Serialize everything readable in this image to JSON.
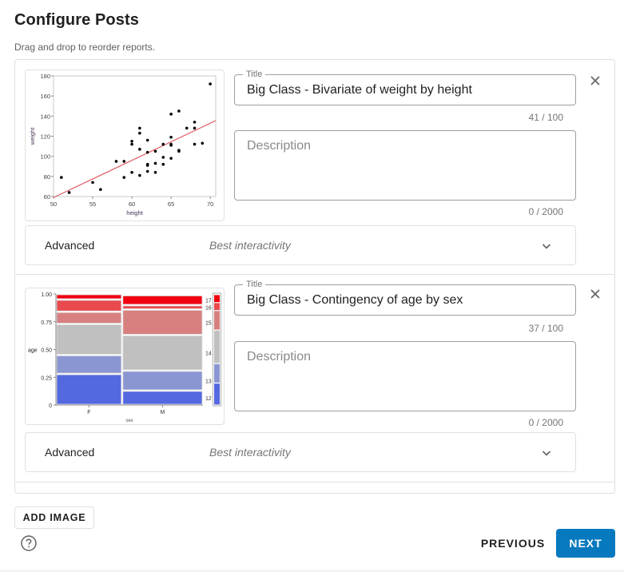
{
  "header": {
    "title": "Configure Posts",
    "subtitle": "Drag and drop to reorder reports."
  },
  "posts": [
    {
      "thumbnail_type": "scatter",
      "title_label": "Title",
      "title_value": "Big Class - Bivariate of weight by height",
      "title_counter": "41 / 100",
      "description_placeholder": "Description",
      "description_value": "",
      "description_counter": "0 / 2000",
      "advanced_label": "Advanced",
      "advanced_value": "Best interactivity",
      "close_icon": "close-icon",
      "expand_icon": "chevron-down-icon"
    },
    {
      "thumbnail_type": "mosaic",
      "title_label": "Title",
      "title_value": "Big Class - Contingency of age by sex",
      "title_counter": "37 / 100",
      "description_placeholder": "Description",
      "description_value": "",
      "description_counter": "0 / 2000",
      "advanced_label": "Advanced",
      "advanced_value": "Best interactivity",
      "close_icon": "close-icon",
      "expand_icon": "chevron-down-icon"
    }
  ],
  "footer": {
    "add_image_label": "ADD IMAGE",
    "help_icon": "help-circle-icon",
    "previous_label": "PREVIOUS",
    "next_label": "NEXT"
  },
  "colors": {
    "primary": "#0779bf",
    "regression_line": "#e05a64",
    "mosaic_17": "#f2000f",
    "mosaic_16": "#e84a4d",
    "mosaic_15": "#d88080",
    "mosaic_14": "#c0c0c0",
    "mosaic_13": "#8a96d2",
    "mosaic_12": "#5468e0"
  },
  "chart_data": [
    {
      "type": "scatter",
      "title": "Bivariate of weight by height",
      "xlabel": "height",
      "ylabel": "weight",
      "xlim": [
        50,
        70.7
      ],
      "ylim": [
        60,
        180
      ],
      "xticks": [
        50,
        55,
        60,
        65,
        70
      ],
      "yticks": [
        60,
        80,
        100,
        120,
        140,
        160,
        180
      ],
      "points": [
        [
          51,
          79
        ],
        [
          52,
          64
        ],
        [
          55,
          74
        ],
        [
          56,
          67
        ],
        [
          58,
          95
        ],
        [
          59,
          95
        ],
        [
          59,
          79
        ],
        [
          60,
          115
        ],
        [
          60,
          112
        ],
        [
          60,
          84
        ],
        [
          61,
          128
        ],
        [
          61,
          123
        ],
        [
          61,
          107
        ],
        [
          61,
          81
        ],
        [
          62,
          116
        ],
        [
          62,
          104
        ],
        [
          62,
          92
        ],
        [
          62,
          91
        ],
        [
          62,
          85
        ],
        [
          63,
          105
        ],
        [
          63,
          93
        ],
        [
          63,
          84
        ],
        [
          64,
          112
        ],
        [
          64,
          99
        ],
        [
          64,
          92
        ],
        [
          65,
          142
        ],
        [
          65,
          119
        ],
        [
          65,
          112
        ],
        [
          65,
          111
        ],
        [
          65,
          98
        ],
        [
          66,
          145
        ],
        [
          66,
          106
        ],
        [
          66,
          105
        ],
        [
          67,
          128
        ],
        [
          68,
          134
        ],
        [
          68,
          128
        ],
        [
          68,
          112
        ],
        [
          69,
          113
        ],
        [
          70,
          172
        ]
      ],
      "fit_line": {
        "x": [
          50,
          70.7
        ],
        "y": [
          59,
          135.5
        ],
        "color": "#e05a64"
      },
      "grid": false
    },
    {
      "type": "mosaic",
      "title": "Contingency of age by sex",
      "xlabel": "sex",
      "ylabel": "age",
      "categories": [
        "F",
        "M"
      ],
      "column_widths": [
        0.45,
        0.55
      ],
      "yticks": [
        "0",
        "0.25",
        "0.50",
        "0.75",
        "1.00"
      ],
      "levels": [
        "12",
        "13",
        "14",
        "15",
        "16",
        "17"
      ],
      "series": [
        {
          "name": "12",
          "values": [
            0.28,
            0.13
          ]
        },
        {
          "name": "13",
          "values": [
            0.17,
            0.18
          ]
        },
        {
          "name": "14",
          "values": [
            0.28,
            0.32
          ]
        },
        {
          "name": "15",
          "values": [
            0.11,
            0.23
          ]
        },
        {
          "name": "16",
          "values": [
            0.11,
            0.04
          ]
        },
        {
          "name": "17",
          "values": [
            0.05,
            0.09
          ]
        }
      ],
      "legend_position": "right"
    }
  ]
}
